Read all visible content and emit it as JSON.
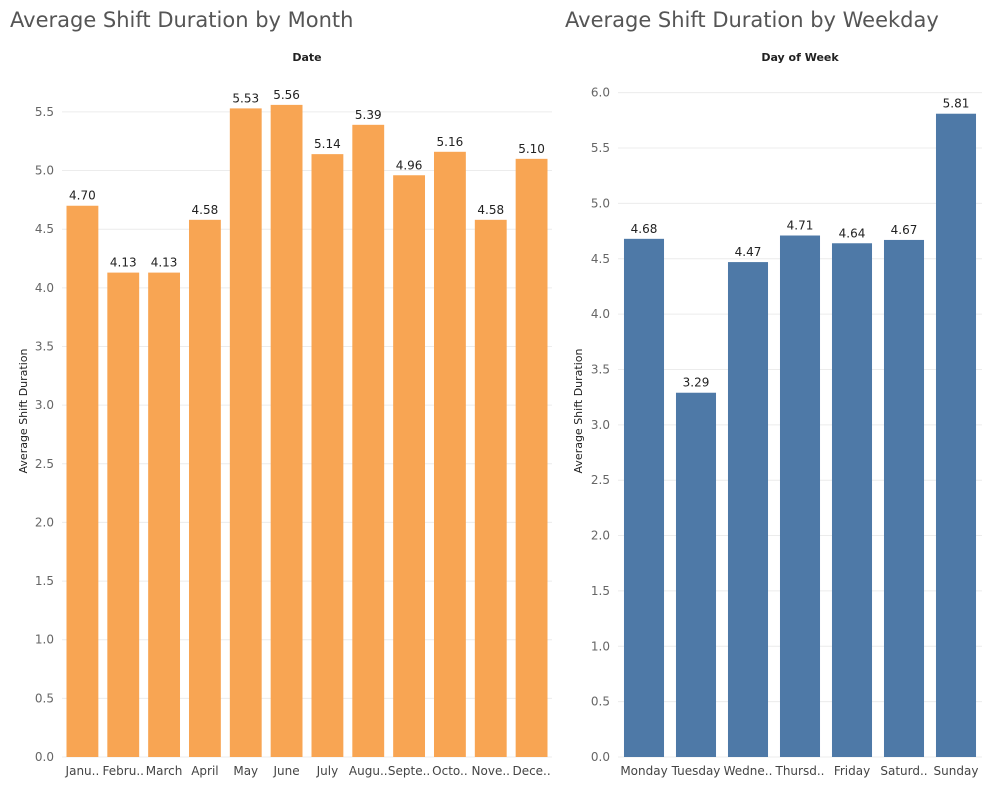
{
  "chart_data": [
    {
      "type": "bar",
      "title": "Average Shift Duration by Month",
      "header": "Date",
      "ylabel": "Average Shift Duration",
      "xlabel": "",
      "ylim": [
        0,
        5.9
      ],
      "yticks": [
        0.0,
        0.5,
        1.0,
        1.5,
        2.0,
        2.5,
        3.0,
        3.5,
        4.0,
        4.5,
        5.0,
        5.5
      ],
      "categories": [
        "Janu..",
        "Febru..",
        "March",
        "April",
        "May",
        "June",
        "July",
        "Augu..",
        "Septe..",
        "Octo..",
        "Nove..",
        "Dece.."
      ],
      "values": [
        4.7,
        4.13,
        4.13,
        4.58,
        5.53,
        5.56,
        5.14,
        5.39,
        4.96,
        5.16,
        4.58,
        5.1
      ],
      "data_labels": [
        "4.70",
        "4.13",
        "4.13",
        "4.58",
        "5.53",
        "5.56",
        "5.14",
        "5.39",
        "4.96",
        "5.16",
        "4.58",
        "5.10"
      ],
      "color": "#f8a553",
      "grid": true
    },
    {
      "type": "bar",
      "title": "Average Shift Duration by Weekday",
      "header": "Day of Week",
      "ylabel": "Average Shift Duration",
      "xlabel": "",
      "ylim": [
        0,
        6.25
      ],
      "yticks": [
        0.0,
        0.5,
        1.0,
        1.5,
        2.0,
        2.5,
        3.0,
        3.5,
        4.0,
        4.5,
        5.0,
        5.5,
        6.0
      ],
      "categories": [
        "Monday",
        "Tuesday",
        "Wedne..",
        "Thursd..",
        "Friday",
        "Saturd..",
        "Sunday"
      ],
      "values": [
        4.68,
        3.29,
        4.47,
        4.71,
        4.64,
        4.67,
        5.81
      ],
      "data_labels": [
        "4.68",
        "3.29",
        "4.47",
        "4.71",
        "4.64",
        "4.67",
        "5.81"
      ],
      "color": "#4e79a7",
      "grid": true
    }
  ]
}
